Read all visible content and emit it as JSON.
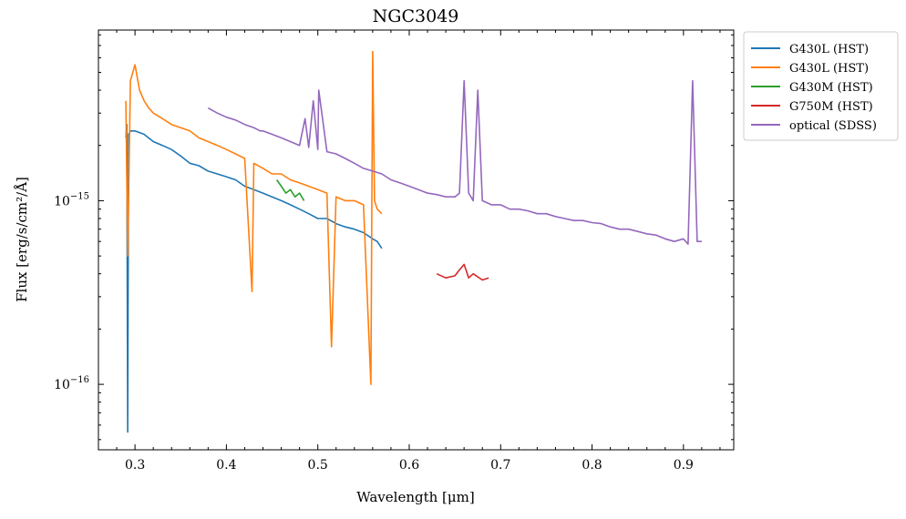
{
  "chart_data": {
    "type": "line",
    "title": "NGC3049",
    "xlabel": "Wavelength [μm]",
    "ylabel": "Flux [erg/s/cm²/Å]",
    "xlim": [
      0.26,
      0.955
    ],
    "ylim": [
      4.4e-17,
      8.5e-15
    ],
    "yscale": "log",
    "x_ticks": [
      0.3,
      0.4,
      0.5,
      0.6,
      0.7,
      0.8,
      0.9
    ],
    "x_tick_labels": [
      "0.3",
      "0.4",
      "0.5",
      "0.6",
      "0.7",
      "0.8",
      "0.9"
    ],
    "y_ticks": [
      1e-16,
      1e-15
    ],
    "y_tick_labels": [
      {
        "base": "10",
        "exp": "−16"
      },
      {
        "base": "10",
        "exp": "−15"
      }
    ],
    "legend_position": "outside top-right",
    "series": [
      {
        "name": "G430L (HST)",
        "color": "#1f77b4",
        "x": [
          0.29,
          0.291,
          0.292,
          0.293,
          0.295,
          0.3,
          0.31,
          0.32,
          0.33,
          0.34,
          0.35,
          0.36,
          0.37,
          0.38,
          0.39,
          0.4,
          0.41,
          0.42,
          0.43,
          0.44,
          0.45,
          0.46,
          0.47,
          0.48,
          0.49,
          0.5,
          0.51,
          0.52,
          0.53,
          0.54,
          0.55,
          0.56,
          0.565,
          0.57
        ],
        "y": [
          2.2e-15,
          2.6e-15,
          5.5e-17,
          2.3e-15,
          2.4e-15,
          2.4e-15,
          2.3e-15,
          2.1e-15,
          2e-15,
          1.9e-15,
          1.75e-15,
          1.6e-15,
          1.55e-15,
          1.45e-15,
          1.4e-15,
          1.35e-15,
          1.3e-15,
          1.2e-15,
          1.15e-15,
          1.1e-15,
          1.05e-15,
          1e-15,
          9.5e-16,
          9e-16,
          8.5e-16,
          8e-16,
          8e-16,
          7.5e-16,
          7.2e-16,
          7e-16,
          6.7e-16,
          6.2e-16,
          6e-16,
          5.5e-16
        ]
      },
      {
        "name": "G430L (HST)",
        "color": "#ff7f0e",
        "x": [
          0.29,
          0.292,
          0.295,
          0.3,
          0.305,
          0.31,
          0.315,
          0.32,
          0.325,
          0.33,
          0.34,
          0.35,
          0.36,
          0.37,
          0.38,
          0.39,
          0.4,
          0.41,
          0.42,
          0.428,
          0.43,
          0.44,
          0.45,
          0.46,
          0.47,
          0.48,
          0.49,
          0.5,
          0.51,
          0.515,
          0.52,
          0.53,
          0.54,
          0.55,
          0.558,
          0.56,
          0.562,
          0.565,
          0.57
        ],
        "y": [
          3.5e-15,
          5e-16,
          4.5e-15,
          5.5e-15,
          4e-15,
          3.5e-15,
          3.2e-15,
          3e-15,
          2.9e-15,
          2.8e-15,
          2.6e-15,
          2.5e-15,
          2.4e-15,
          2.2e-15,
          2.1e-15,
          2e-15,
          1.9e-15,
          1.8e-15,
          1.7e-15,
          3.2e-16,
          1.6e-15,
          1.5e-15,
          1.4e-15,
          1.4e-15,
          1.3e-15,
          1.25e-15,
          1.2e-15,
          1.15e-15,
          1.1e-15,
          1.6e-16,
          1.05e-15,
          1e-15,
          1e-15,
          9.5e-16,
          1e-16,
          6.5e-15,
          1e-15,
          9e-16,
          8.5e-16
        ]
      },
      {
        "name": "G430M (HST)",
        "color": "#2ca02c",
        "x": [
          0.455,
          0.46,
          0.465,
          0.47,
          0.475,
          0.48,
          0.485
        ],
        "y": [
          1.3e-15,
          1.2e-15,
          1.1e-15,
          1.15e-15,
          1.05e-15,
          1.1e-15,
          1e-15
        ]
      },
      {
        "name": "G750M (HST)",
        "color": "#d62728",
        "x": [
          0.63,
          0.64,
          0.65,
          0.655,
          0.66,
          0.665,
          0.67,
          0.68,
          0.687
        ],
        "y": [
          4e-16,
          3.8e-16,
          3.9e-16,
          4.2e-16,
          4.5e-16,
          3.8e-16,
          4e-16,
          3.7e-16,
          3.8e-16
        ]
      },
      {
        "name": "optical (SDSS)",
        "color": "#9467bd",
        "x": [
          0.38,
          0.39,
          0.4,
          0.41,
          0.42,
          0.43,
          0.437,
          0.44,
          0.45,
          0.46,
          0.47,
          0.48,
          0.486,
          0.49,
          0.495,
          0.5,
          0.501,
          0.51,
          0.52,
          0.53,
          0.54,
          0.55,
          0.56,
          0.57,
          0.58,
          0.59,
          0.6,
          0.61,
          0.62,
          0.63,
          0.64,
          0.65,
          0.655,
          0.66,
          0.665,
          0.67,
          0.675,
          0.68,
          0.69,
          0.7,
          0.71,
          0.72,
          0.73,
          0.74,
          0.75,
          0.76,
          0.77,
          0.78,
          0.79,
          0.8,
          0.81,
          0.82,
          0.83,
          0.84,
          0.85,
          0.86,
          0.87,
          0.88,
          0.89,
          0.9,
          0.905,
          0.91,
          0.915,
          0.92
        ],
        "y": [
          3.2e-15,
          3e-15,
          2.85e-15,
          2.75e-15,
          2.6e-15,
          2.5e-15,
          2.4e-15,
          2.4e-15,
          2.3e-15,
          2.2e-15,
          2.1e-15,
          2e-15,
          2.8e-15,
          1.95e-15,
          3.5e-15,
          1.9e-15,
          4e-15,
          1.85e-15,
          1.8e-15,
          1.7e-15,
          1.6e-15,
          1.5e-15,
          1.45e-15,
          1.4e-15,
          1.3e-15,
          1.25e-15,
          1.2e-15,
          1.15e-15,
          1.1e-15,
          1.08e-15,
          1.05e-15,
          1.05e-15,
          1.1e-15,
          4.5e-15,
          1.1e-15,
          1e-15,
          4e-15,
          1e-15,
          9.5e-16,
          9.5e-16,
          9e-16,
          9e-16,
          8.8e-16,
          8.5e-16,
          8.5e-16,
          8.2e-16,
          8e-16,
          7.8e-16,
          7.8e-16,
          7.6e-16,
          7.5e-16,
          7.2e-16,
          7e-16,
          7e-16,
          6.8e-16,
          6.6e-16,
          6.5e-16,
          6.2e-16,
          6e-16,
          6.2e-16,
          5.8e-16,
          4.5e-15,
          6e-16,
          6e-16
        ]
      }
    ]
  }
}
